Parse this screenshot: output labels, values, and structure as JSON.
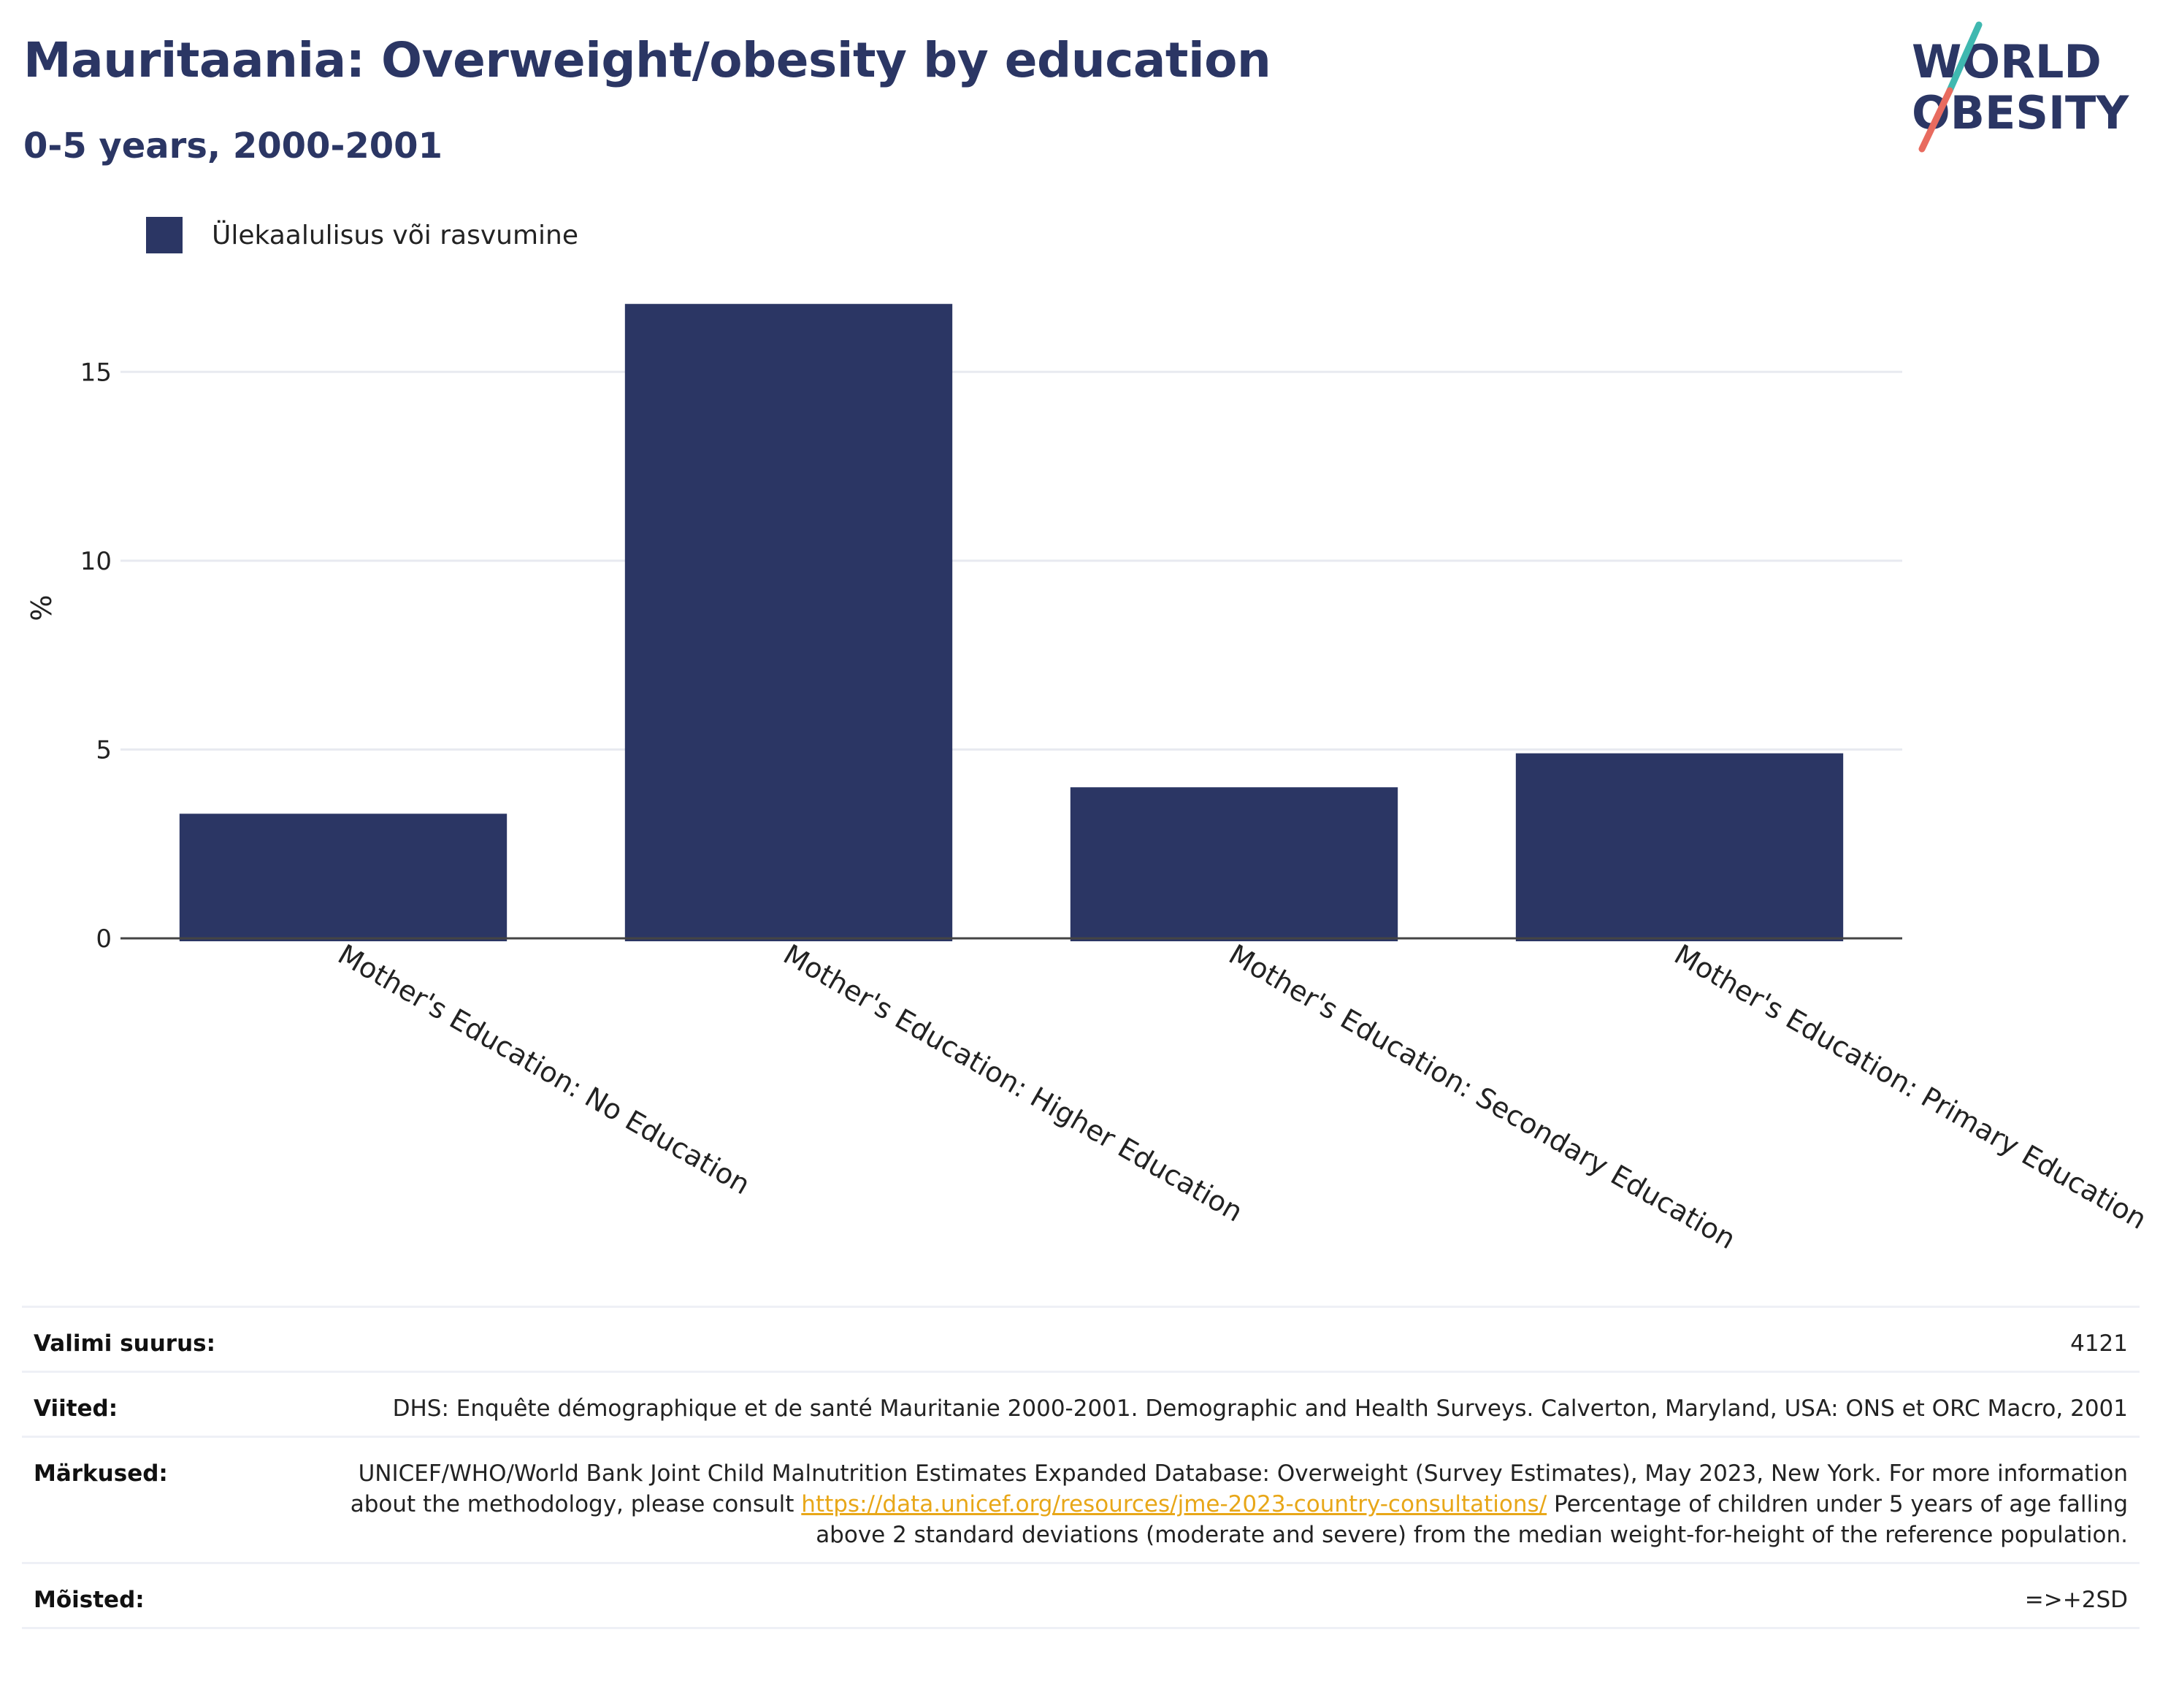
{
  "header": {
    "title": "Mauritaania: Overweight/obesity by education",
    "subtitle": "0-5 years, 2000-2001"
  },
  "logo": {
    "line1": "WORLD",
    "line2": "OBESITY",
    "colors": {
      "teal": "#3fb8b0",
      "coral": "#e86b5f",
      "navy": "#2b3664"
    }
  },
  "legend": {
    "label": "Ülekaalulisus või rasvumine",
    "color": "#2b3664"
  },
  "chart_data": {
    "type": "bar",
    "categories": [
      "Mother's Education: No Education",
      "Mother's Education: Higher Education",
      "Mother's Education: Secondary Education",
      "Mother's Education: Primary Education"
    ],
    "series": [
      {
        "name": "Ülekaalulisus või rasvumine",
        "values": [
          3.3,
          16.8,
          4.0,
          4.9
        ]
      }
    ],
    "ylabel": "%",
    "ylim": [
      0,
      17.5
    ],
    "yticks": [
      0,
      5,
      10,
      15
    ],
    "grid": true,
    "legend_position": "top-left",
    "bar_color": "#2b3664"
  },
  "meta": {
    "sample": {
      "label": "Valimi suurus:",
      "value": "4121"
    },
    "references": {
      "label": "Viited:",
      "value": "DHS: Enquête démographique et de santé Mauritanie 2000-2001. Demographic and Health Surveys. Calverton, Maryland, USA: ONS et ORC Macro, 2001"
    },
    "notes": {
      "label": "Märkused:",
      "text_before": "UNICEF/WHO/World Bank Joint Child Malnutrition Estimates Expanded Database: Overweight (Survey Estimates), May 2023, New York. For more information about the methodology, please consult ",
      "link": "https://data.unicef.org/resources/jme-2023-country-consultations/",
      "text_after": " Percentage of children under 5 years of age falling above 2 standard deviations (moderate and severe) from the median weight-for-height of the reference population."
    },
    "definitions": {
      "label": "Mõisted:",
      "value": "=>+2SD"
    }
  }
}
